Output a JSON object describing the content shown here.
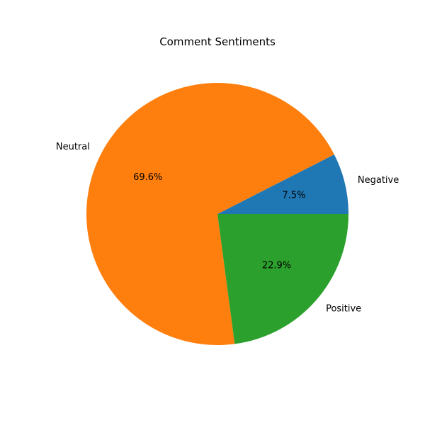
{
  "chart_data": {
    "type": "pie",
    "title": "Comment Sentiments",
    "categories": [
      "Negative",
      "Neutral",
      "Positive"
    ],
    "values": [
      7.5,
      69.6,
      22.9
    ],
    "percent_labels": [
      "7.5%",
      "69.6%",
      "22.9%"
    ],
    "colors": [
      "#1f77b4",
      "#ff7f0e",
      "#2ca02c"
    ],
    "start_angle_deg": 0,
    "direction": "counterclockwise"
  }
}
